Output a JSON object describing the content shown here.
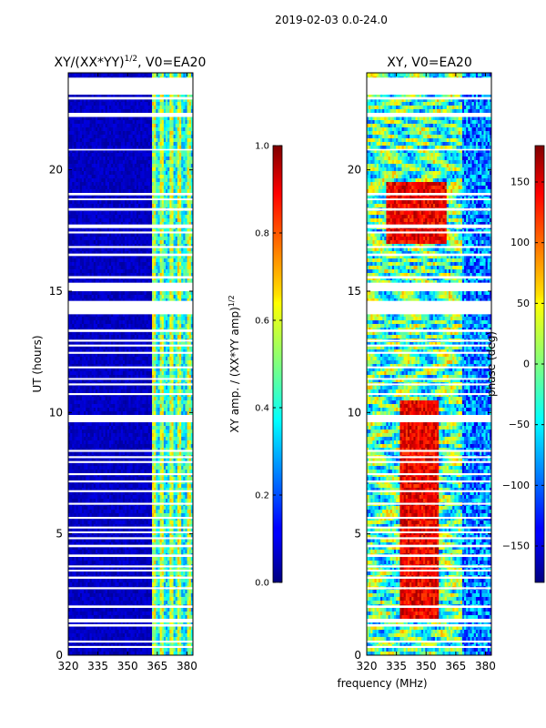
{
  "figure_title": "2019-02-03 0.0-24.0",
  "colors": {
    "background": "#ffffff",
    "gap": "#ffffff",
    "frame": "#000000"
  },
  "chart_data": [
    {
      "type": "heatmap",
      "title_prefix": "XY/(XX*YY)",
      "title_sup": "1/2",
      "title_suffix": ", V0=EA20",
      "xlabel": "",
      "ylabel": "UT (hours)",
      "xlim": [
        320,
        383
      ],
      "ylim": [
        0,
        24
      ],
      "xticks": [
        320,
        335,
        350,
        365,
        380
      ],
      "yticks": [
        0,
        5,
        10,
        15,
        20
      ],
      "colormap": "jet",
      "colorbar": {
        "label_prefix": "XY amp. / (XX*YY amp)",
        "label_sup": "1/2",
        "range": [
          0.0,
          1.0
        ],
        "ticks": [
          "0.0",
          "0.2",
          "0.4",
          "0.6",
          "0.8",
          "1.0"
        ],
        "tick_values": [
          0.0,
          0.2,
          0.4,
          0.6,
          0.8,
          1.0
        ]
      },
      "description": "Normalized cross-correlation amplitude; low (~0.05) over 320-362 MHz, elevated (~0.3-0.6) striped band over 362-383 MHz.",
      "features": [
        {
          "freq_range": [
            320,
            362
          ],
          "value": 0.05
        },
        {
          "freq_range": [
            362,
            383
          ],
          "value": 0.45
        }
      ]
    },
    {
      "type": "heatmap",
      "title": "XY, V0=EA20",
      "xlabel": "frequency (MHz)",
      "ylabel": "",
      "xlim": [
        320,
        383
      ],
      "ylim": [
        0,
        24
      ],
      "xticks": [
        320,
        335,
        350,
        365,
        380
      ],
      "yticks": [
        0,
        5,
        10,
        15,
        20
      ],
      "colormap": "jet",
      "colorbar": {
        "label": "phase (deg)",
        "range": [
          -180,
          180
        ],
        "ticks": [
          "−150",
          "−100",
          "−50",
          "0",
          "50",
          "100",
          "150"
        ],
        "tick_values": [
          -150,
          -100,
          -50,
          0,
          50,
          100,
          150
        ]
      },
      "description": "Cross-correlation phase, mostly noisy with a high-phase (~150 deg) band near 340-355 MHz during 2-10 UT."
    }
  ],
  "flagged_hours": [
    [
      0.3,
      0.38
    ],
    [
      0.52,
      0.6
    ],
    [
      1.18,
      1.28
    ],
    [
      1.35,
      1.5
    ],
    [
      1.95,
      2.05
    ],
    [
      2.72,
      2.8
    ],
    [
      3.15,
      3.24
    ],
    [
      3.45,
      3.52
    ],
    [
      3.62,
      3.7
    ],
    [
      4.05,
      4.15
    ],
    [
      4.45,
      4.55
    ],
    [
      4.78,
      4.86
    ],
    [
      5.03,
      5.1
    ],
    [
      5.22,
      5.3
    ],
    [
      5.62,
      5.7
    ],
    [
      6.2,
      6.28
    ],
    [
      6.72,
      6.8
    ],
    [
      7.12,
      7.2
    ],
    [
      7.42,
      7.5
    ],
    [
      7.92,
      8.0
    ],
    [
      8.12,
      8.2
    ],
    [
      8.38,
      8.46
    ],
    [
      9.6,
      9.9
    ],
    [
      10.72,
      10.8
    ],
    [
      11.12,
      11.2
    ],
    [
      11.35,
      11.42
    ],
    [
      11.82,
      11.9
    ],
    [
      12.42,
      12.5
    ],
    [
      12.72,
      12.8
    ],
    [
      12.92,
      13.0
    ],
    [
      13.32,
      13.42
    ],
    [
      14.05,
      14.6
    ],
    [
      15.0,
      15.35
    ],
    [
      15.52,
      15.62
    ],
    [
      16.45,
      16.55
    ],
    [
      16.78,
      16.86
    ],
    [
      17.38,
      17.46
    ],
    [
      17.6,
      17.75
    ],
    [
      18.32,
      18.42
    ],
    [
      18.75,
      18.82
    ],
    [
      18.95,
      19.05
    ],
    [
      20.8,
      20.86
    ],
    [
      22.18,
      22.35
    ],
    [
      22.9,
      23.0
    ],
    [
      23.1,
      23.8
    ]
  ]
}
